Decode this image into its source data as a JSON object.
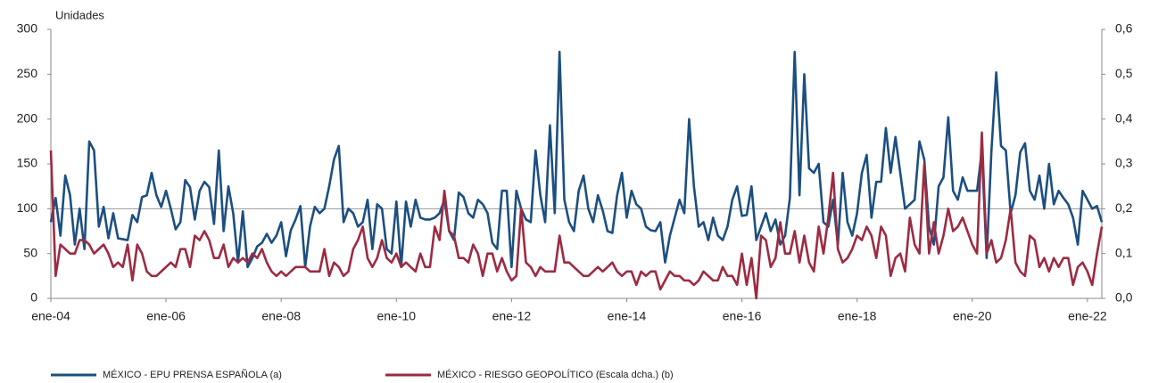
{
  "chart_data": {
    "type": "line",
    "y_label": "Unidades",
    "categories": [
      "ene-04",
      null,
      null,
      null,
      null,
      null,
      null,
      null,
      null,
      null,
      null,
      null,
      null,
      null,
      null,
      null,
      null,
      null,
      null,
      null,
      null,
      null,
      null,
      null,
      "ene-06",
      null,
      null,
      null,
      null,
      null,
      null,
      null,
      null,
      null,
      null,
      null,
      null,
      null,
      null,
      null,
      null,
      null,
      null,
      null,
      null,
      null,
      null,
      null,
      "ene-08",
      null,
      null,
      null,
      null,
      null,
      null,
      null,
      null,
      null,
      null,
      null,
      null,
      null,
      null,
      null,
      null,
      null,
      null,
      null,
      null,
      null,
      null,
      null,
      "ene-10",
      null,
      null,
      null,
      null,
      null,
      null,
      null,
      null,
      null,
      null,
      null,
      null,
      null,
      null,
      null,
      null,
      null,
      null,
      null,
      null,
      null,
      null,
      null,
      "ene-12",
      null,
      null,
      null,
      null,
      null,
      null,
      null,
      null,
      null,
      null,
      null,
      null,
      null,
      null,
      null,
      null,
      null,
      null,
      null,
      null,
      null,
      null,
      null,
      "ene-14",
      null,
      null,
      null,
      null,
      null,
      null,
      null,
      null,
      null,
      null,
      null,
      null,
      null,
      null,
      null,
      null,
      null,
      null,
      null,
      null,
      null,
      null,
      null,
      "ene-16",
      null,
      null,
      null,
      null,
      null,
      null,
      null,
      null,
      null,
      null,
      null,
      null,
      null,
      null,
      null,
      null,
      null,
      null,
      null,
      null,
      null,
      null,
      null,
      "ene-18",
      null,
      null,
      null,
      null,
      null,
      null,
      null,
      null,
      null,
      null,
      null,
      null,
      null,
      null,
      null,
      null,
      null,
      null,
      null,
      null,
      null,
      null,
      null,
      "ene-20",
      null,
      null,
      null,
      null,
      null,
      null,
      null,
      null,
      null,
      null,
      null,
      null,
      null,
      null,
      null,
      null,
      null,
      null,
      null,
      null,
      null,
      null,
      null,
      "ene-22",
      null,
      null,
      null
    ],
    "series": [
      {
        "name": "MÉXICO - EPU PRENSA ESPAÑOLA (a)",
        "color": "#1c4f80",
        "axis": "y",
        "values": [
          85,
          112,
          70,
          137,
          115,
          60,
          100,
          55,
          175,
          165,
          80,
          102,
          67,
          95,
          67,
          66,
          65,
          93,
          85,
          113,
          115,
          140,
          115,
          102,
          120,
          100,
          77,
          85,
          132,
          124,
          88,
          120,
          130,
          124,
          83,
          165,
          75,
          125,
          95,
          40,
          97,
          35,
          45,
          58,
          62,
          72,
          62,
          70,
          85,
          47,
          76,
          88,
          103,
          35,
          80,
          102,
          95,
          100,
          125,
          155,
          170,
          85,
          100,
          95,
          80,
          85,
          110,
          55,
          105,
          100,
          55,
          50,
          108,
          35,
          108,
          80,
          110,
          90,
          88,
          88,
          90,
          95,
          110,
          75,
          65,
          118,
          113,
          95,
          90,
          110,
          105,
          95,
          62,
          55,
          120,
          120,
          35,
          120,
          100,
          88,
          85,
          165,
          115,
          85,
          193,
          95,
          275,
          110,
          85,
          75,
          120,
          137,
          100,
          85,
          115,
          98,
          75,
          73,
          115,
          140,
          90,
          120,
          105,
          100,
          80,
          76,
          75,
          85,
          40,
          70,
          90,
          110,
          95,
          200,
          125,
          80,
          85,
          65,
          90,
          70,
          65,
          80,
          110,
          125,
          92,
          93,
          125,
          65,
          80,
          95,
          75,
          88,
          60,
          70,
          112,
          275,
          115,
          250,
          145,
          140,
          150,
          85,
          80,
          110,
          60,
          140,
          85,
          70,
          95,
          140,
          160,
          90,
          130,
          130,
          190,
          140,
          180,
          140,
          100,
          105,
          110,
          175,
          155,
          80,
          60,
          125,
          135,
          202,
          120,
          110,
          135,
          120,
          120,
          120,
          165,
          45,
          165,
          252,
          170,
          165,
          95,
          115,
          163,
          173,
          120,
          110,
          137,
          100,
          150,
          105,
          120,
          112,
          105,
          90,
          60,
          120,
          110,
          100,
          103,
          85
        ]
      },
      {
        "name": "MÉXICO - RIESGO GEOPOLÍTICO (Escala dcha.) (b)",
        "color": "#9c2b42",
        "axis": "y2",
        "values": [
          0.33,
          0.05,
          0.12,
          0.11,
          0.1,
          0.1,
          0.13,
          0.13,
          0.12,
          0.1,
          0.11,
          0.12,
          0.1,
          0.07,
          0.08,
          0.07,
          0.12,
          0.04,
          0.12,
          0.1,
          0.06,
          0.05,
          0.05,
          0.06,
          0.07,
          0.08,
          0.07,
          0.11,
          0.11,
          0.07,
          0.14,
          0.13,
          0.15,
          0.13,
          0.09,
          0.09,
          0.12,
          0.07,
          0.09,
          0.08,
          0.09,
          0.08,
          0.1,
          0.09,
          0.11,
          0.08,
          0.06,
          0.05,
          0.06,
          0.05,
          0.06,
          0.07,
          0.07,
          0.07,
          0.06,
          0.06,
          0.06,
          0.11,
          0.05,
          0.08,
          0.07,
          0.05,
          0.06,
          0.11,
          0.13,
          0.16,
          0.09,
          0.07,
          0.09,
          0.13,
          0.09,
          0.08,
          0.1,
          0.07,
          0.08,
          0.07,
          0.06,
          0.1,
          0.07,
          0.07,
          0.16,
          0.13,
          0.24,
          0.15,
          0.14,
          0.09,
          0.09,
          0.08,
          0.12,
          0.1,
          0.05,
          0.1,
          0.1,
          0.06,
          0.09,
          0.06,
          0.04,
          0.05,
          0.2,
          0.08,
          0.07,
          0.05,
          0.07,
          0.06,
          0.06,
          0.06,
          0.14,
          0.08,
          0.08,
          0.07,
          0.06,
          0.05,
          0.05,
          0.06,
          0.07,
          0.06,
          0.07,
          0.08,
          0.06,
          0.05,
          0.06,
          0.06,
          0.03,
          0.06,
          0.05,
          0.06,
          0.06,
          0.02,
          0.04,
          0.06,
          0.05,
          0.05,
          0.04,
          0.04,
          0.03,
          0.04,
          0.06,
          0.05,
          0.04,
          0.04,
          0.07,
          0.05,
          0.05,
          0.03,
          0.1,
          0.03,
          0.09,
          0.0,
          0.14,
          0.13,
          0.07,
          0.09,
          0.17,
          0.1,
          0.1,
          0.15,
          0.08,
          0.14,
          0.08,
          0.06,
          0.16,
          0.1,
          0.18,
          0.28,
          0.11,
          0.08,
          0.09,
          0.11,
          0.14,
          0.13,
          0.16,
          0.14,
          0.09,
          0.16,
          0.14,
          0.05,
          0.09,
          0.1,
          0.06,
          0.18,
          0.12,
          0.1,
          0.3,
          0.1,
          0.17,
          0.1,
          0.14,
          0.2,
          0.15,
          0.16,
          0.18,
          0.15,
          0.12,
          0.1,
          0.37,
          0.1,
          0.13,
          0.08,
          0.09,
          0.13,
          0.2,
          0.08,
          0.06,
          0.05,
          0.14,
          0.13,
          0.07,
          0.09,
          0.06,
          0.09,
          0.07,
          0.09,
          0.09,
          0.03,
          0.07,
          0.08,
          0.06,
          0.03,
          0.1,
          0.16
        ]
      }
    ],
    "ylim": [
      0,
      300
    ],
    "yticks": [
      0,
      50,
      100,
      150,
      200,
      250,
      300
    ],
    "y2lim": [
      0,
      0.6
    ],
    "y2ticks": [
      {
        "value": 0,
        "label": "0,0"
      },
      {
        "value": 0.1,
        "label": "0,1"
      },
      {
        "value": 0.2,
        "label": "0,2"
      },
      {
        "value": 0.3,
        "label": "0,3"
      },
      {
        "value": 0.4,
        "label": "0,4"
      },
      {
        "value": 0.5,
        "label": "0,5"
      },
      {
        "value": 0.6,
        "label": "0,6"
      }
    ],
    "reference_line": 100,
    "legend": "bottom"
  }
}
